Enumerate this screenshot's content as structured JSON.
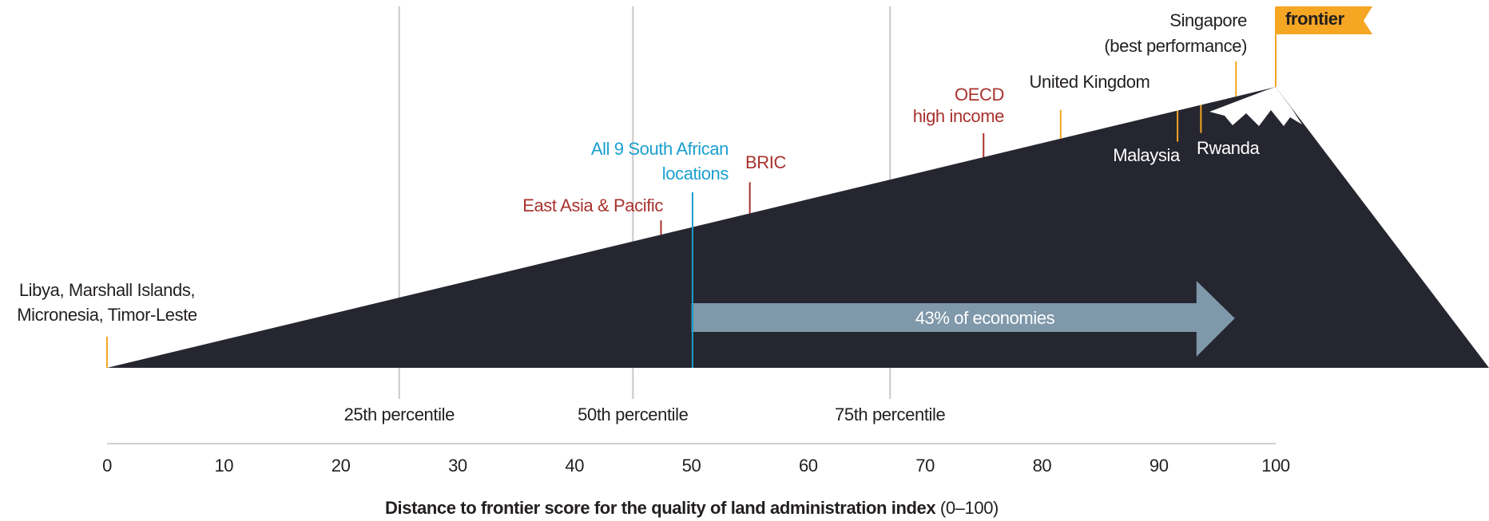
{
  "chart_data": {
    "type": "mountain",
    "xlabel": "Distance to frontier score for the quality of land administration index",
    "xlabel_unit": "(0–100)",
    "xlim": [
      0,
      100
    ],
    "xticks": [
      0,
      10,
      20,
      30,
      40,
      50,
      60,
      70,
      80,
      90,
      100
    ],
    "color": "#262630",
    "percentiles": [
      {
        "label": "25th percentile",
        "value": 25
      },
      {
        "label": "50th percentile",
        "value": 45
      },
      {
        "label": "75th percentile",
        "value": 67
      }
    ],
    "markers": [
      {
        "label": [
          "Libya, Marshall Islands,",
          "Micronesia, Timor-Leste"
        ],
        "value": 0,
        "color": "#f5a623",
        "label_color": "#231f20"
      },
      {
        "label": [
          "East Asia & Pacific"
        ],
        "value": 47.4,
        "color": "#a8322d",
        "label_color": "#a8322d"
      },
      {
        "label": [
          "All 9 South African",
          "locations"
        ],
        "value": 50.1,
        "color": "#1a9fd0",
        "label_color": "#1a9fd0"
      },
      {
        "label": [
          "BRIC"
        ],
        "value": 55,
        "color": "#a8322d",
        "label_color": "#a8322d"
      },
      {
        "label": [
          "OECD",
          "high income"
        ],
        "value": 75,
        "color": "#a8322d",
        "label_color": "#a8322d"
      },
      {
        "label": [
          "United Kingdom"
        ],
        "value": 81.6,
        "color": "#f5a623",
        "label_color": "#231f20"
      },
      {
        "label": [
          "Malaysia"
        ],
        "value": 91.6,
        "color": "#f5a623",
        "label_color": "#ffffff"
      },
      {
        "label": [
          "Rwanda"
        ],
        "value": 93.6,
        "color": "#f5a623",
        "label_color": "#ffffff"
      },
      {
        "label": [
          "Singapore",
          "(best performance)"
        ],
        "value": 96.6,
        "color": "#f5a623",
        "label_color": "#231f20"
      }
    ],
    "frontier": {
      "label": "frontier",
      "value": 100,
      "color": "#f5a623"
    },
    "arrow": {
      "label": "43% of economies",
      "start": 50,
      "end": 96.5,
      "color": "#7f98aa"
    }
  }
}
